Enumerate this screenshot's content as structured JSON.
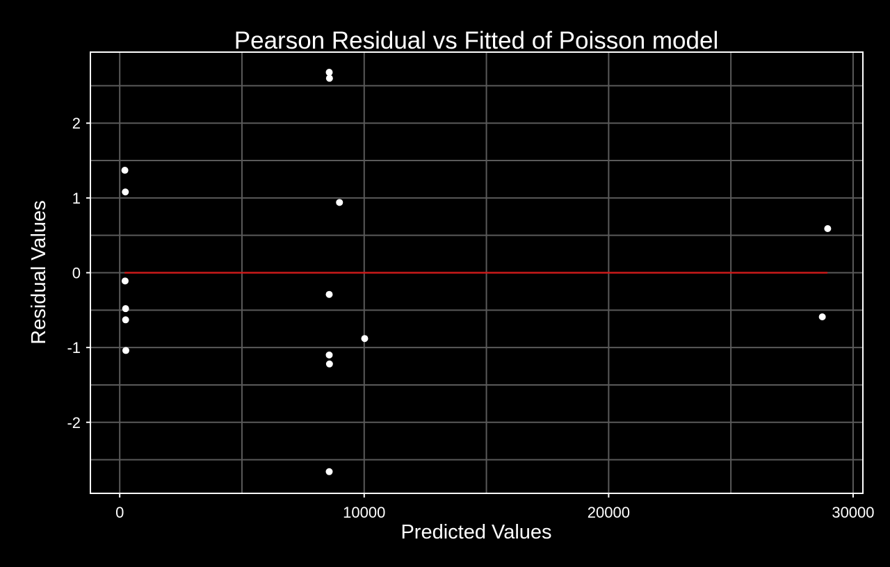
{
  "chart_data": {
    "type": "scatter",
    "title": "Pearson Residual vs Fitted of Poisson model",
    "xlabel": "Predicted Values",
    "ylabel": "Residual Values",
    "xlim": [
      -1200,
      30400
    ],
    "ylim": [
      -2.95,
      2.95
    ],
    "xticks": [
      0,
      10000,
      20000,
      30000
    ],
    "xtick_labels": [
      "0",
      "10000",
      "20000",
      "30000"
    ],
    "yticks": [
      -2,
      -1,
      0,
      1,
      2
    ],
    "ytick_labels": [
      "-2",
      "-1",
      "0",
      "1",
      "2"
    ],
    "x_minor_gridlines": [
      5000,
      15000,
      25000
    ],
    "y_minor_gridlines": [
      -2.5,
      -1.5,
      -0.5,
      0.5,
      1.5,
      2.5
    ],
    "grid": true,
    "legend": "none",
    "reference_line": {
      "y": 0,
      "x_start": 200,
      "x_end": 28950,
      "color": "#cc1a1a"
    },
    "colors": {
      "background": "#000000",
      "panel_border": "#ffffff",
      "grid": "#5a5a5a",
      "points": "#ffffff",
      "text": "#ffffff"
    },
    "series": [
      {
        "points": [
          {
            "x": 210,
            "y": 1.37
          },
          {
            "x": 230,
            "y": 1.08
          },
          {
            "x": 220,
            "y": -0.11
          },
          {
            "x": 240,
            "y": -0.48
          },
          {
            "x": 240,
            "y": -0.63
          },
          {
            "x": 250,
            "y": -1.04
          },
          {
            "x": 8570,
            "y": 2.68
          },
          {
            "x": 8580,
            "y": 2.6
          },
          {
            "x": 8990,
            "y": 0.94
          },
          {
            "x": 8570,
            "y": -0.29
          },
          {
            "x": 8570,
            "y": -1.1
          },
          {
            "x": 8580,
            "y": -1.22
          },
          {
            "x": 8570,
            "y": -2.66
          },
          {
            "x": 10020,
            "y": -0.88
          },
          {
            "x": 28960,
            "y": 0.59
          },
          {
            "x": 28740,
            "y": -0.59
          }
        ]
      }
    ]
  }
}
